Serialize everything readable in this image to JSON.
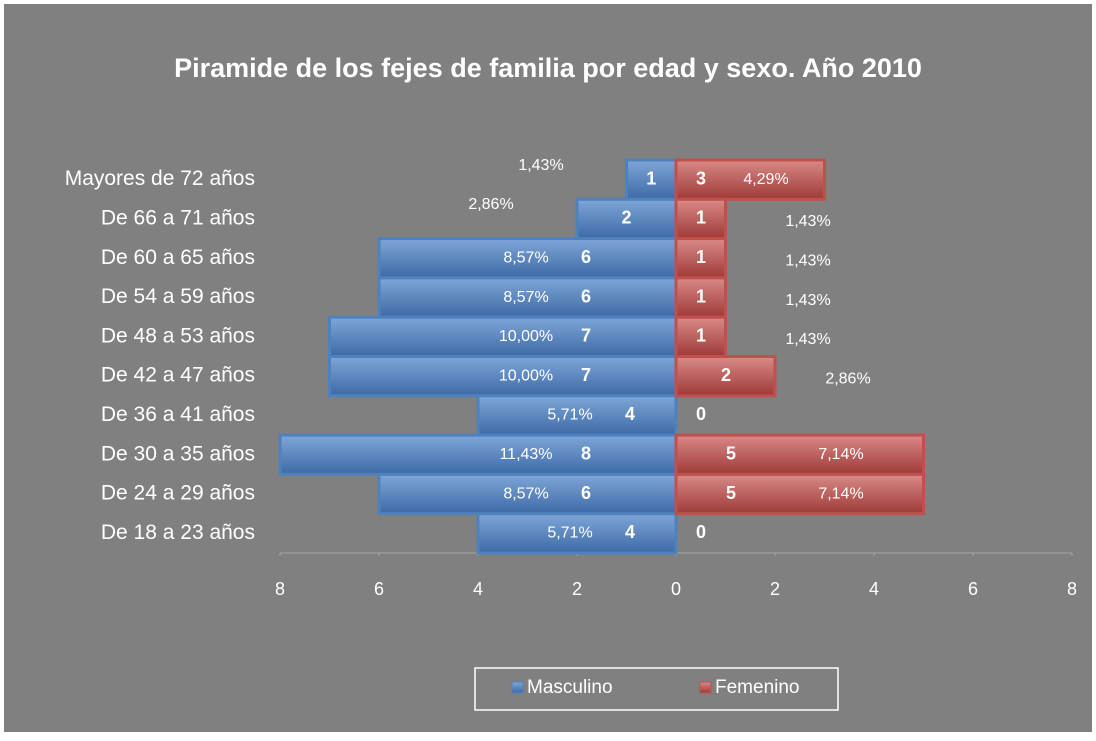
{
  "chart_data": {
    "type": "pyramid",
    "title": "Piramide  de los fejes de familia por edad y sexo. Año 2010",
    "categories": [
      "Mayores de 72 años",
      "De 66 a 71 años",
      "De 60 a 65 años",
      "De 54 a 59 años",
      "De 48 a 53 años",
      "De 42 a 47 años",
      "De 36 a 41 años",
      "De 30 a 35 años",
      "De 24 a 29 años",
      "De 18 a 23 años"
    ],
    "series": [
      {
        "name": "Masculino",
        "color": "#4f81bd",
        "side": "left",
        "values": [
          1,
          2,
          6,
          6,
          7,
          7,
          4,
          8,
          6,
          4
        ],
        "percent_labels": [
          "1,43%",
          "2,86%",
          "8,57%",
          "8,57%",
          "10,00%",
          "10,00%",
          "5,71%",
          "11,43%",
          "8,57%",
          "5,71%"
        ]
      },
      {
        "name": "Femenino",
        "color": "#c0504d",
        "side": "right",
        "values": [
          3,
          1,
          1,
          1,
          1,
          2,
          0,
          5,
          5,
          0
        ],
        "percent_labels": [
          "4,29%",
          "1,43%",
          "1,43%",
          "1,43%",
          "1,43%",
          "2,86%",
          null,
          "7,14%",
          "7,14%",
          null
        ]
      }
    ],
    "xlim": [
      -8,
      8
    ],
    "xticks": [
      {
        "value": -8,
        "label": "8"
      },
      {
        "value": -6,
        "label": "6"
      },
      {
        "value": -4,
        "label": "4"
      },
      {
        "value": -2,
        "label": "2"
      },
      0,
      2,
      4,
      6,
      8
    ],
    "legend": "bottom"
  }
}
